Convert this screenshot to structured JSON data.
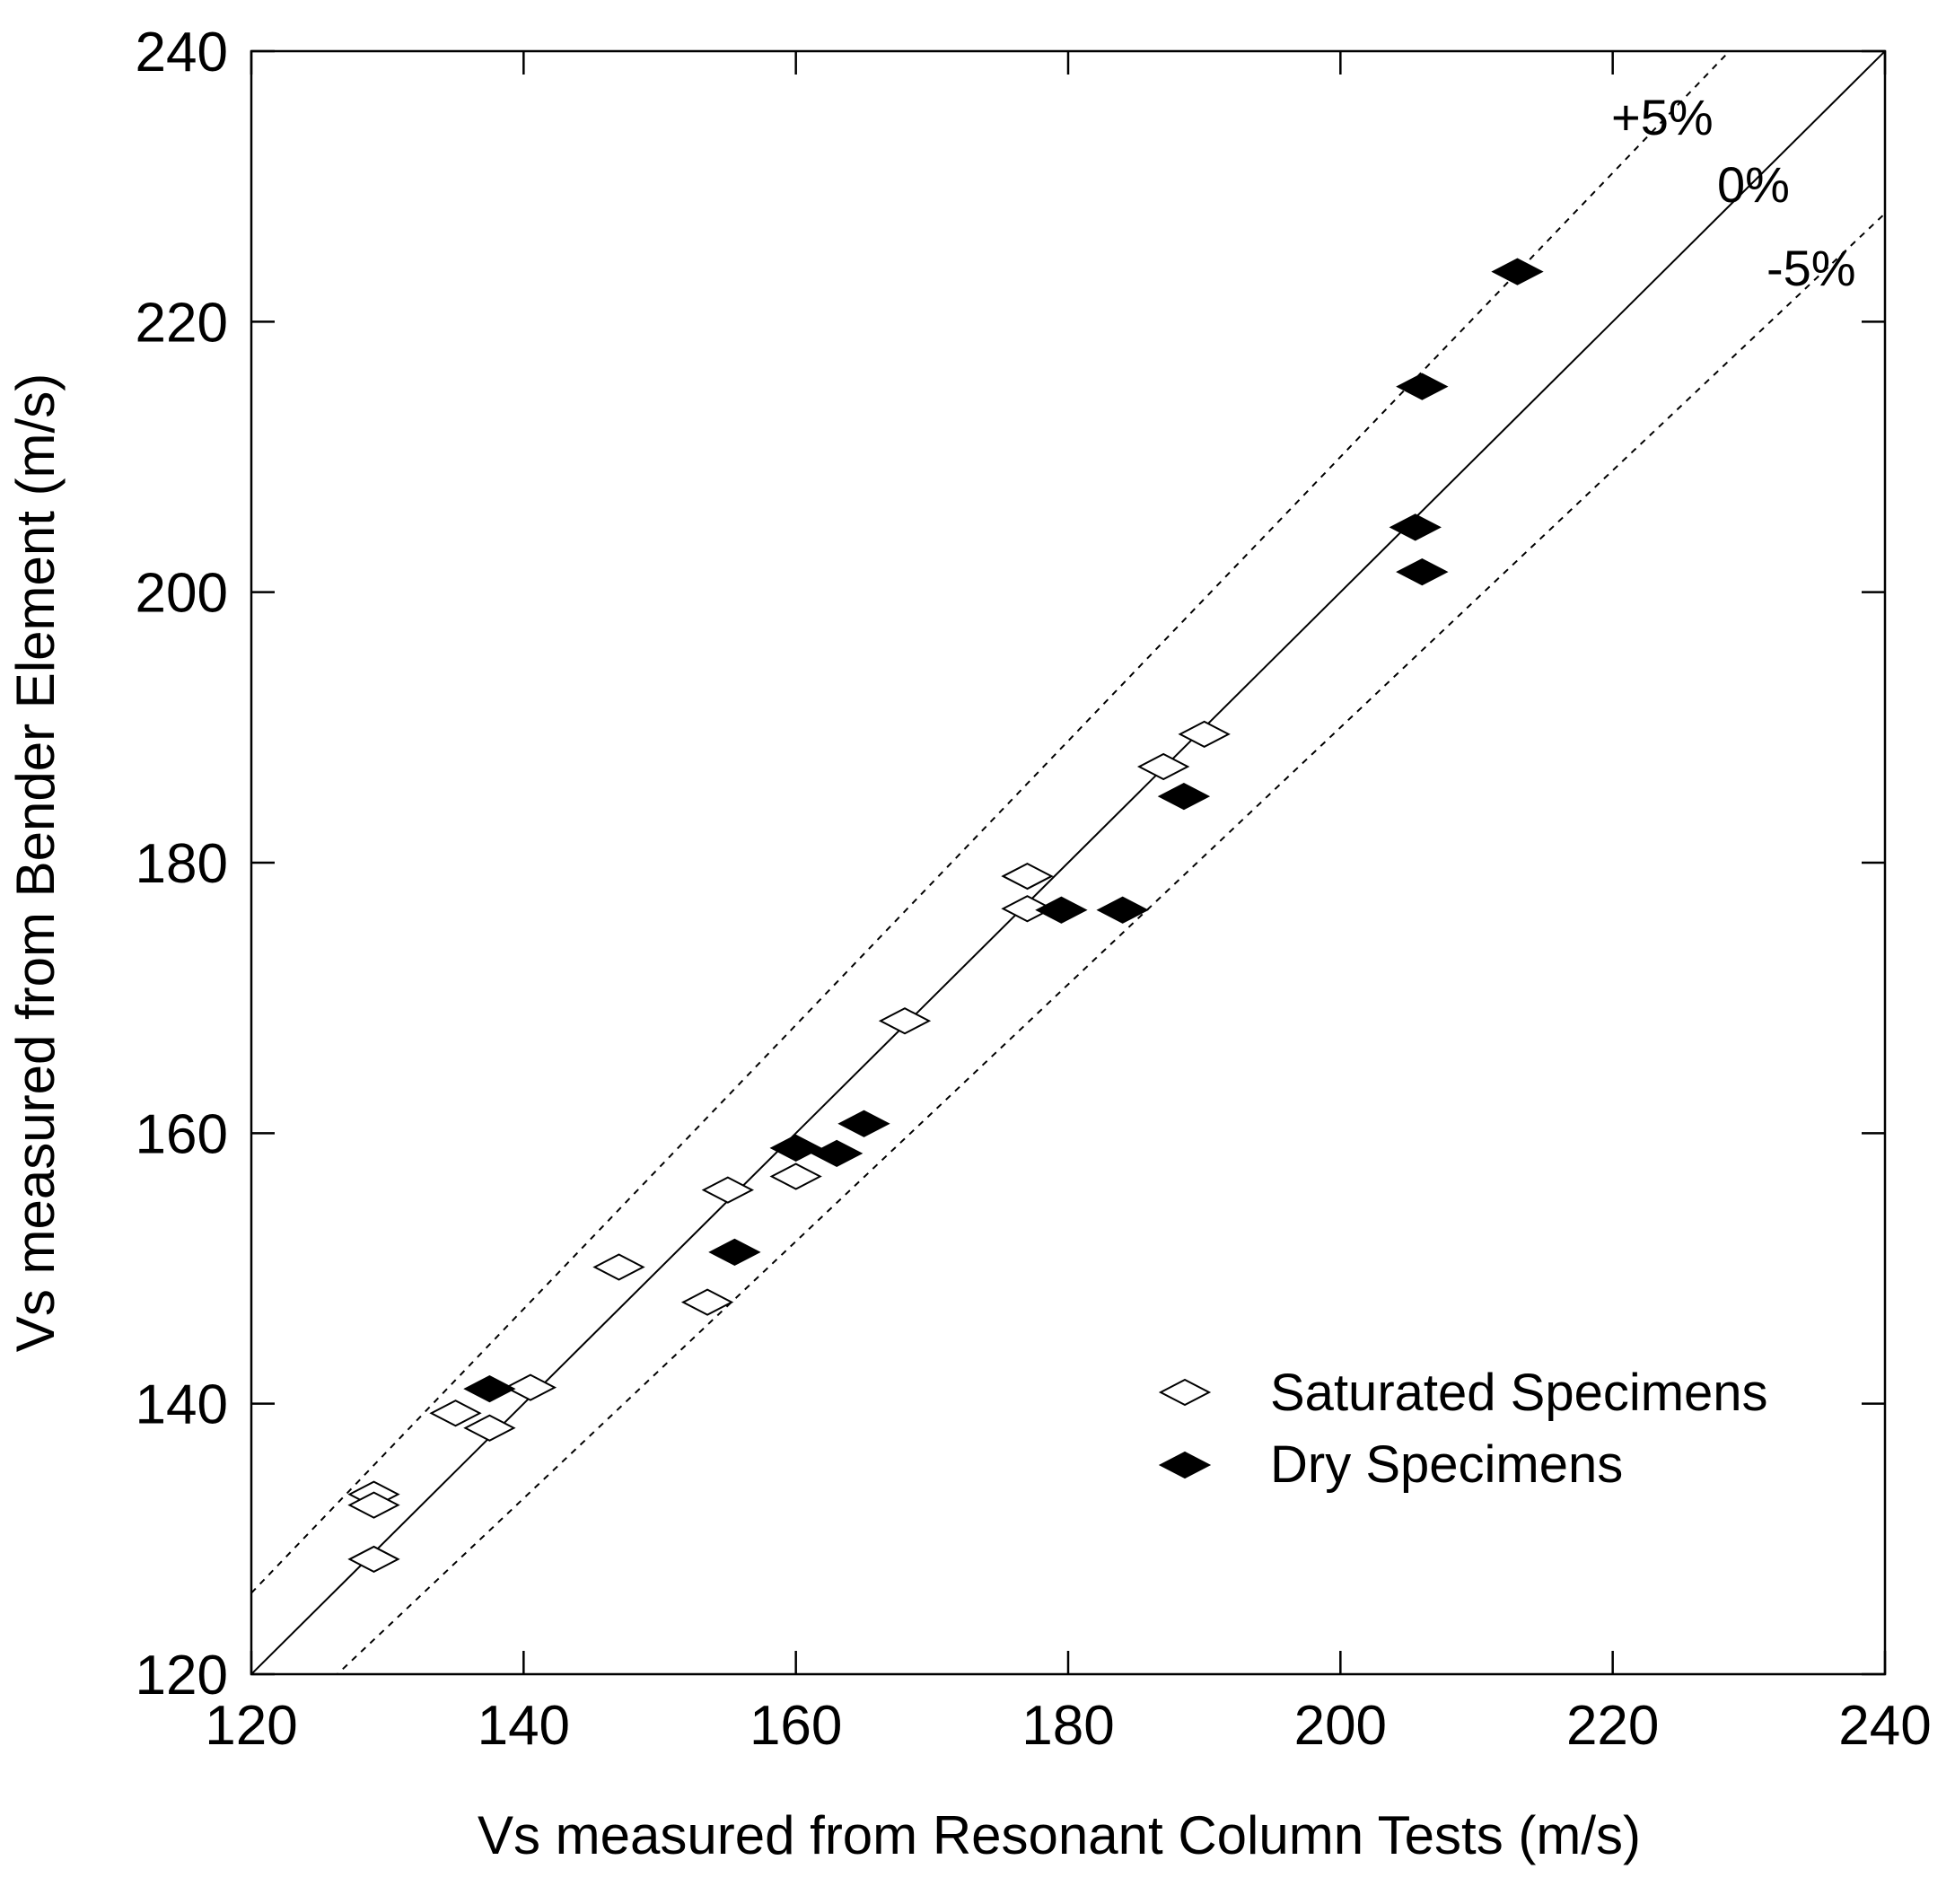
{
  "chart_data": {
    "type": "scatter",
    "xlabel": "Vs measured from Resonant Column Tests (m/s)",
    "ylabel": "Vs measured from Bender Element (m/s)",
    "xlim": [
      120,
      240
    ],
    "ylim": [
      120,
      240
    ],
    "xticks": [
      120,
      140,
      160,
      180,
      200,
      220,
      240
    ],
    "yticks": [
      120,
      140,
      160,
      180,
      200,
      220,
      240
    ],
    "grid": false,
    "legend_position": "lower-right",
    "reference_lines": [
      {
        "label": "+5%",
        "slope": 1.05,
        "style": "dashed"
      },
      {
        "label": "0%",
        "slope": 1.0,
        "style": "solid"
      },
      {
        "label": "-5%",
        "slope": 0.95,
        "style": "dashed"
      }
    ],
    "series": [
      {
        "name": "Saturated Specimens",
        "marker": "open-diamond",
        "x": [
          129,
          129,
          129,
          135,
          137.5,
          140.5,
          147,
          153.5,
          155,
          160,
          168,
          177,
          177,
          187,
          190
        ],
        "y": [
          133.3,
          132.5,
          128.5,
          139.3,
          138.2,
          141.2,
          150.1,
          147.5,
          155.8,
          156.8,
          168.3,
          179,
          176.6,
          187.1,
          189.5
        ]
      },
      {
        "name": "Dry Specimens",
        "marker": "filled-diamond",
        "x": [
          137.5,
          155.5,
          160,
          163,
          165,
          179.5,
          184,
          188.5,
          205.5,
          206,
          206,
          213
        ],
        "y": [
          141.1,
          151.2,
          158.9,
          158.5,
          160.7,
          176.5,
          176.5,
          184.9,
          204.8,
          215.2,
          201.5,
          223.7
        ]
      }
    ]
  }
}
